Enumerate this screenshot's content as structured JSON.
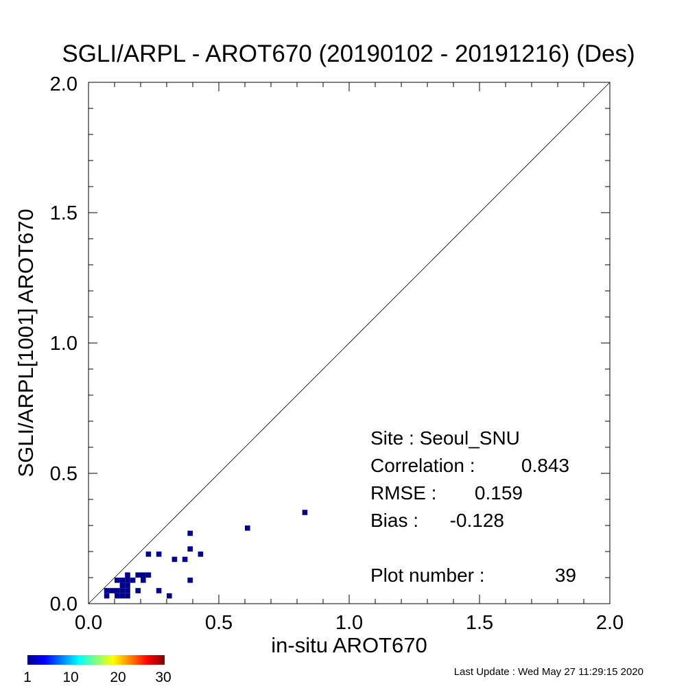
{
  "chart_data": {
    "type": "heatmap",
    "title": "SGLI/ARPL - AROT670 (20190102 - 20191216) (Des)",
    "xlabel": "in-situ AROT670",
    "ylabel": "SGLI/ARPL[1001]    AROT670",
    "xlim": [
      0,
      2
    ],
    "ylim": [
      0,
      2
    ],
    "x_ticks": [
      "0.0",
      "0.5",
      "1.0",
      "1.5",
      "2.0"
    ],
    "y_ticks": [
      "0.0",
      "0.5",
      "1.0",
      "1.5",
      "2.0"
    ],
    "reference_line": "1:1",
    "bin_size": 0.02,
    "points": [
      {
        "x": 0.07,
        "y": 0.05
      },
      {
        "x": 0.09,
        "y": 0.05
      },
      {
        "x": 0.11,
        "y": 0.05
      },
      {
        "x": 0.13,
        "y": 0.05
      },
      {
        "x": 0.15,
        "y": 0.05
      },
      {
        "x": 0.07,
        "y": 0.03
      },
      {
        "x": 0.11,
        "y": 0.03
      },
      {
        "x": 0.13,
        "y": 0.03
      },
      {
        "x": 0.15,
        "y": 0.03
      },
      {
        "x": 0.11,
        "y": 0.09
      },
      {
        "x": 0.13,
        "y": 0.07
      },
      {
        "x": 0.15,
        "y": 0.07
      },
      {
        "x": 0.13,
        "y": 0.09
      },
      {
        "x": 0.15,
        "y": 0.09
      },
      {
        "x": 0.15,
        "y": 0.11
      },
      {
        "x": 0.17,
        "y": 0.09
      },
      {
        "x": 0.19,
        "y": 0.11
      },
      {
        "x": 0.21,
        "y": 0.11
      },
      {
        "x": 0.23,
        "y": 0.11
      },
      {
        "x": 0.21,
        "y": 0.09
      },
      {
        "x": 0.19,
        "y": 0.05
      },
      {
        "x": 0.23,
        "y": 0.19
      },
      {
        "x": 0.27,
        "y": 0.19
      },
      {
        "x": 0.27,
        "y": 0.05
      },
      {
        "x": 0.31,
        "y": 0.03
      },
      {
        "x": 0.33,
        "y": 0.17
      },
      {
        "x": 0.37,
        "y": 0.17
      },
      {
        "x": 0.39,
        "y": 0.21
      },
      {
        "x": 0.39,
        "y": 0.27
      },
      {
        "x": 0.43,
        "y": 0.19
      },
      {
        "x": 0.39,
        "y": 0.09
      },
      {
        "x": 0.61,
        "y": 0.29
      },
      {
        "x": 0.83,
        "y": 0.35
      }
    ],
    "stats": {
      "site": "Site : Seoul_SNU",
      "correlation_label": "Correlation :",
      "correlation": "0.843",
      "rmse_label": "RMSE :",
      "rmse": "0.159",
      "bias_label": "Bias :",
      "bias": "-0.128",
      "plot_number_label": "Plot number :",
      "plot_number": "39"
    },
    "colorbar": {
      "labels": [
        "1",
        "10",
        "20",
        "30"
      ],
      "colors": [
        "#00008f",
        "#0000ff",
        "#0080ff",
        "#00ffff",
        "#80ff80",
        "#ffff00",
        "#ff8000",
        "#ff0000",
        "#800000"
      ]
    },
    "point_color": "#00008f"
  },
  "footer": {
    "last_update": "Last Update : Wed May 27 11:29:15 2020"
  }
}
